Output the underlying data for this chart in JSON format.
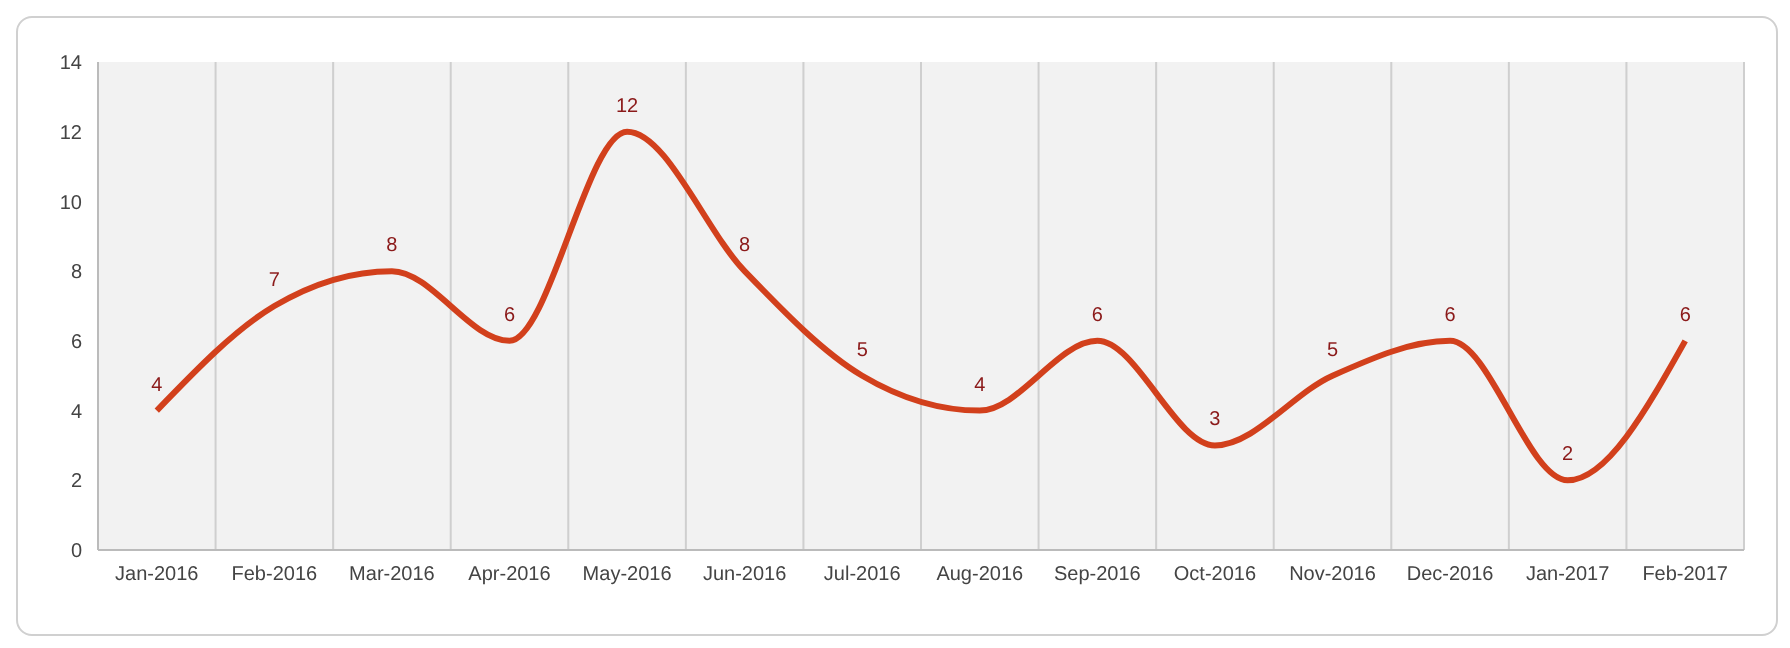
{
  "chart_data": {
    "type": "line",
    "categories": [
      "Jan-2016",
      "Feb-2016",
      "Mar-2016",
      "Apr-2016",
      "May-2016",
      "Jun-2016",
      "Jul-2016",
      "Aug-2016",
      "Sep-2016",
      "Oct-2016",
      "Nov-2016",
      "Dec-2016",
      "Jan-2017",
      "Feb-2017"
    ],
    "series": [
      {
        "color": "#d2401c",
        "values": [
          4,
          7,
          8,
          6,
          12,
          8,
          5,
          4,
          6,
          3,
          5,
          6,
          2,
          6
        ]
      }
    ],
    "ylim": [
      0,
      14
    ],
    "yticks": [
      0,
      2,
      4,
      6,
      8,
      10,
      12,
      14
    ],
    "grid": "x",
    "data_labels": true,
    "marker": "none",
    "line_style": "solid"
  }
}
